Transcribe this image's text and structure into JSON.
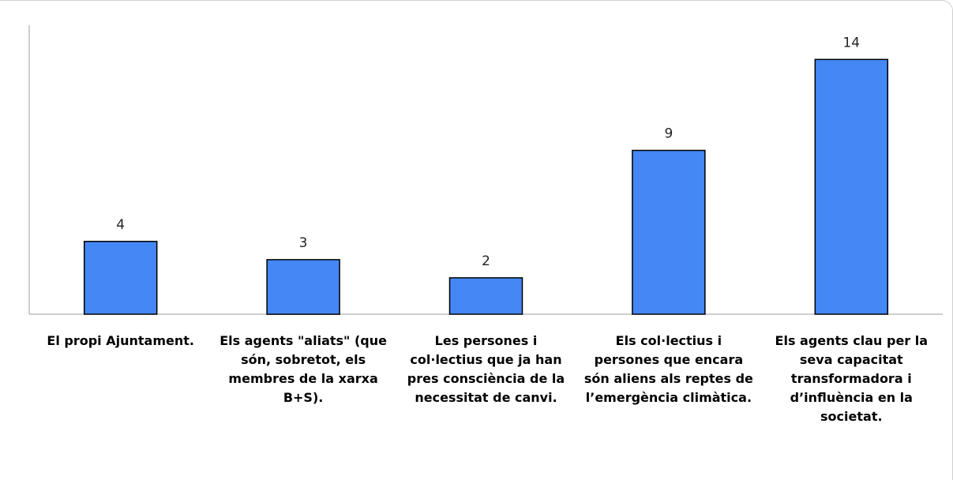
{
  "chart_data": {
    "type": "bar",
    "categories": [
      "El propi Ajuntament.",
      "Els agents \"aliats\" (que\nsón, sobretot, els\nmembres de la xarxa\nB+S).",
      "Les persones i\ncol·lectius que ja han\npres consciència de la\nnecessitat de canvi.",
      "Els col·lectius i\npersones que encara\nsón aliens als reptes de\nl’emergència climàtica.",
      "Els agents clau per la\nseva capacitat\ntransformadora i\nd’influència en la\nsocietat."
    ],
    "values": [
      4,
      3,
      2,
      9,
      14
    ],
    "data_labels": [
      "4",
      "3",
      "2",
      "9",
      "14"
    ],
    "ylim": [
      0,
      15
    ],
    "grid": false,
    "legend": "none",
    "colors": {
      "bar": "#4487f5",
      "bar_stroke": "#000000",
      "axis": "#9e9e9e"
    }
  }
}
